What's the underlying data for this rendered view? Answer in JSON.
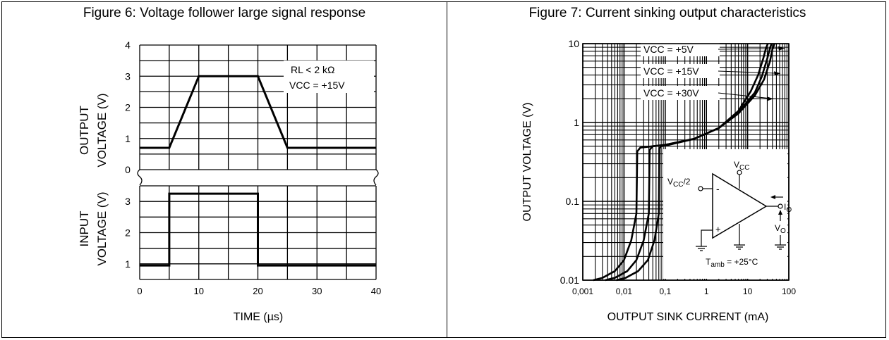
{
  "chart_data": [
    {
      "type": "line",
      "title": "Figure 6: Voltage follower large signal response",
      "xlabel": "TIME (µs)",
      "x_ticks": [
        "0",
        "10",
        "20",
        "30",
        "40"
      ],
      "xlim": [
        0,
        40
      ],
      "top_panel": {
        "ylabel_line1": "OUTPUT",
        "ylabel_line2": "VOLTAGE (V)",
        "y_ticks": [
          "4",
          "3",
          "2",
          "1",
          "0"
        ],
        "ylim": [
          0,
          4
        ],
        "annotation_line1": "RL  < 2 kΩ",
        "annotation_line2": "VCC = +15V",
        "series": [
          {
            "x": [
              0,
              5,
              10,
              18,
              20,
              25,
              40
            ],
            "y": [
              0.7,
              0.7,
              3.0,
              3.0,
              3.0,
              0.7,
              0.7
            ]
          }
        ]
      },
      "bottom_panel": {
        "ylabel_line1": "INPUT",
        "ylabel_line2": "VOLTAGE (V)",
        "y_ticks": [
          "3",
          "2",
          "1"
        ],
        "ylim": [
          0.5,
          3.5
        ],
        "series": [
          {
            "x": [
              0,
              5,
              5,
              20,
              20,
              40
            ],
            "y": [
              0.95,
              0.95,
              3.25,
              3.25,
              0.95,
              0.95
            ]
          }
        ]
      }
    },
    {
      "type": "line",
      "title": "Figure 7: Current sinking output characteristics",
      "xlabel": "OUTPUT SINK CURRENT (mA)",
      "ylabel": "OUTPUT VOLTAGE (V)",
      "xscale": "log",
      "yscale": "log",
      "xlim": [
        0.001,
        100
      ],
      "ylim": [
        0.01,
        10
      ],
      "x_ticks": [
        "0,001",
        "0,01",
        "0,1",
        "1",
        "10",
        "100"
      ],
      "y_ticks": [
        "10",
        "1",
        "0.1",
        "0.01"
      ],
      "series": [
        {
          "name": "VCC = +5V",
          "x": [
            0.0018,
            0.003,
            0.006,
            0.01,
            0.015,
            0.02,
            0.021,
            0.025,
            0.1,
            0.5,
            2,
            6,
            15,
            25,
            35,
            40,
            45
          ],
          "y": [
            0.01,
            0.0107,
            0.013,
            0.018,
            0.032,
            0.07,
            0.43,
            0.48,
            0.52,
            0.62,
            0.85,
            1.3,
            2.2,
            3.5,
            6,
            8.5,
            10
          ]
        },
        {
          "name": "VCC = +15V",
          "x": [
            0.0035,
            0.006,
            0.012,
            0.02,
            0.03,
            0.04,
            0.042,
            0.05,
            0.1,
            0.5,
            2,
            6,
            15,
            22,
            30,
            35,
            38
          ],
          "y": [
            0.01,
            0.0107,
            0.013,
            0.018,
            0.032,
            0.07,
            0.45,
            0.5,
            0.52,
            0.62,
            0.85,
            1.35,
            2.4,
            3.8,
            6.5,
            8.8,
            10
          ]
        },
        {
          "name": "VCC = +30V",
          "x": [
            0.0065,
            0.011,
            0.022,
            0.038,
            0.055,
            0.07,
            0.072,
            0.08,
            0.12,
            0.5,
            2,
            6,
            12,
            18,
            24,
            28,
            31
          ],
          "y": [
            0.01,
            0.0107,
            0.013,
            0.018,
            0.032,
            0.07,
            0.47,
            0.5,
            0.52,
            0.62,
            0.85,
            1.4,
            2.5,
            4.0,
            6.5,
            8.8,
            10
          ]
        }
      ],
      "legend_labels": [
        "VCC = +5V",
        "VCC = +15V",
        "VCC = +30V"
      ],
      "inset": {
        "vcc_label": "V",
        "vcc_sub": "CC",
        "vin_label": "V",
        "vin_sub": "CC",
        "vin_suffix": "/2",
        "minus": "-",
        "plus": "+",
        "io_label": "I",
        "io_sub": "O",
        "vo_label": "V",
        "vo_sub": "O",
        "tamb_label": "T",
        "tamb_sub": "amb",
        "tamb_value": " = +25°C"
      }
    }
  ]
}
